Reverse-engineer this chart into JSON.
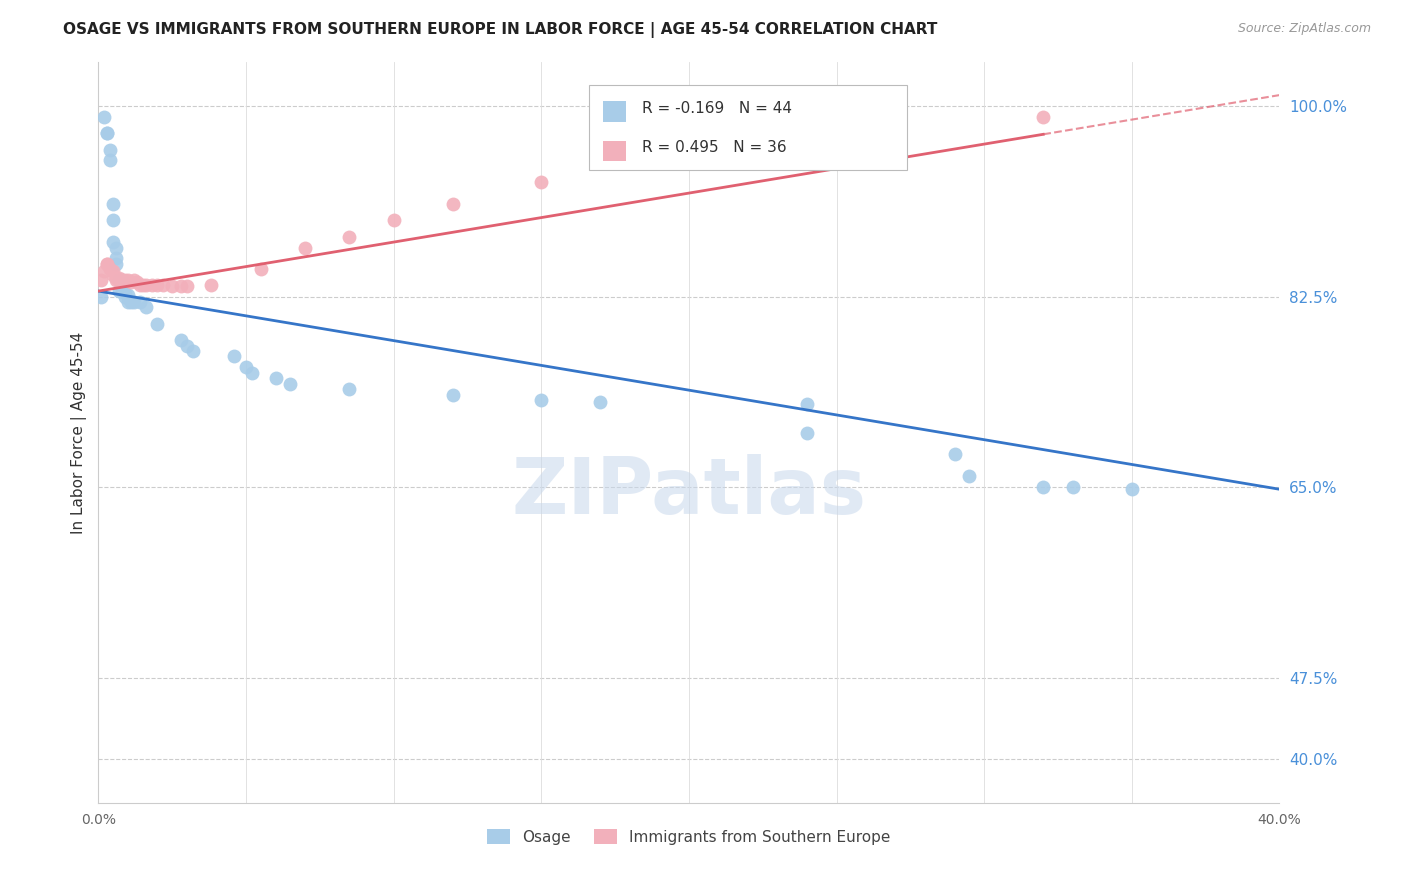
{
  "title": "OSAGE VS IMMIGRANTS FROM SOUTHERN EUROPE IN LABOR FORCE | AGE 45-54 CORRELATION CHART",
  "source": "Source: ZipAtlas.com",
  "ylabel": "In Labor Force | Age 45-54",
  "xlim": [
    0.0,
    0.4
  ],
  "ylim": [
    0.36,
    1.04
  ],
  "blue_R": -0.169,
  "blue_N": 44,
  "pink_R": 0.495,
  "pink_N": 36,
  "blue_color": "#a8cce8",
  "pink_color": "#f2b0bb",
  "blue_line_color": "#3575c8",
  "pink_line_color": "#e06070",
  "legend_label_blue": "Osage",
  "legend_label_pink": "Immigrants from Southern Europe",
  "watermark": "ZIPatlas",
  "watermark_color_zi": "#d0dff0",
  "watermark_color_atlas": "#b8cce4",
  "ytick_right_vals": [
    0.4,
    0.475,
    0.65,
    0.825,
    1.0
  ],
  "ytick_right_labels": [
    "40.0%",
    "47.5%",
    "65.0%",
    "82.5%",
    "100.0%"
  ],
  "xtick_vals": [
    0.0,
    0.05,
    0.1,
    0.15,
    0.2,
    0.25,
    0.3,
    0.35,
    0.4
  ],
  "xtick_labels": [
    "0.0%",
    "",
    "",
    "",
    "",
    "",
    "",
    "",
    "40.0%"
  ],
  "blue_x": [
    0.001,
    0.002,
    0.003,
    0.003,
    0.004,
    0.004,
    0.005,
    0.005,
    0.005,
    0.006,
    0.006,
    0.006,
    0.007,
    0.007,
    0.008,
    0.008,
    0.009,
    0.009,
    0.01,
    0.01,
    0.011,
    0.012,
    0.014,
    0.016,
    0.02,
    0.028,
    0.03,
    0.032,
    0.046,
    0.05,
    0.052,
    0.06,
    0.065,
    0.085,
    0.12,
    0.15,
    0.17,
    0.24,
    0.24,
    0.29,
    0.295,
    0.32,
    0.33,
    0.35
  ],
  "blue_y": [
    0.825,
    0.99,
    0.975,
    0.975,
    0.96,
    0.95,
    0.91,
    0.895,
    0.875,
    0.87,
    0.86,
    0.855,
    0.84,
    0.83,
    0.84,
    0.83,
    0.828,
    0.825,
    0.826,
    0.82,
    0.82,
    0.82,
    0.82,
    0.815,
    0.8,
    0.785,
    0.78,
    0.775,
    0.77,
    0.76,
    0.755,
    0.75,
    0.745,
    0.74,
    0.735,
    0.73,
    0.728,
    0.726,
    0.7,
    0.68,
    0.66,
    0.65,
    0.65,
    0.648
  ],
  "pink_x": [
    0.001,
    0.002,
    0.003,
    0.003,
    0.004,
    0.005,
    0.005,
    0.006,
    0.006,
    0.007,
    0.007,
    0.008,
    0.009,
    0.01,
    0.011,
    0.012,
    0.013,
    0.014,
    0.015,
    0.016,
    0.018,
    0.02,
    0.022,
    0.025,
    0.028,
    0.03,
    0.038,
    0.055,
    0.07,
    0.085,
    0.1,
    0.12,
    0.15,
    0.2,
    0.26,
    0.32
  ],
  "pink_y": [
    0.84,
    0.848,
    0.855,
    0.855,
    0.85,
    0.848,
    0.845,
    0.842,
    0.84,
    0.842,
    0.84,
    0.84,
    0.84,
    0.84,
    0.838,
    0.84,
    0.838,
    0.836,
    0.836,
    0.836,
    0.836,
    0.836,
    0.836,
    0.835,
    0.835,
    0.835,
    0.836,
    0.85,
    0.87,
    0.88,
    0.895,
    0.91,
    0.93,
    0.955,
    0.975,
    0.99
  ],
  "blue_trendline_x0": 0.0,
  "blue_trendline_y0": 0.83,
  "blue_trendline_x1": 0.4,
  "blue_trendline_y1": 0.648,
  "pink_trendline_x0": 0.0,
  "pink_trendline_y0": 0.83,
  "pink_trendline_x1": 0.4,
  "pink_trendline_y1": 1.01
}
